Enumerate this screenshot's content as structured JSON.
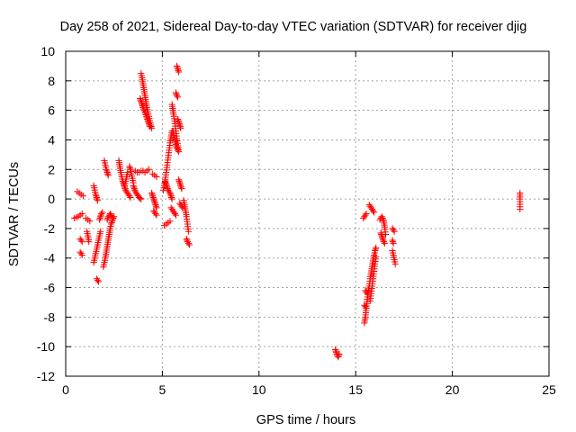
{
  "chart_data": {
    "type": "scatter",
    "title": "Day 258 of 2021, Sidereal Day-to-day VTEC variation (SDTVAR) for receiver djig",
    "xlabel": "GPS time / hours",
    "ylabel": "SDTVAR / TECUs",
    "xlim": [
      0,
      25
    ],
    "ylim": [
      -12,
      10
    ],
    "xticks": [
      0,
      5,
      10,
      15,
      20,
      25
    ],
    "yticks": [
      -12,
      -10,
      -8,
      -6,
      -4,
      -2,
      0,
      2,
      4,
      6,
      8,
      10
    ],
    "grid": true,
    "marker": "+",
    "series": [
      {
        "color": "#ff0000",
        "segments": [
          {
            "x": [
              0.45,
              0.55,
              0.65,
              0.75,
              0.85
            ],
            "y": [
              -1.3,
              -1.25,
              -1.2,
              -1.1,
              -1.0
            ]
          },
          {
            "x": [
              0.6,
              0.7,
              0.8,
              0.9
            ],
            "y": [
              0.5,
              0.4,
              0.3,
              0.2
            ]
          },
          {
            "x": [
              0.75,
              0.8,
              0.85
            ],
            "y": [
              -2.7,
              -2.8,
              -2.9
            ]
          },
          {
            "x": [
              0.75,
              0.8,
              0.85
            ],
            "y": [
              -3.6,
              -3.7,
              -3.8
            ]
          },
          {
            "x": [
              1.05,
              1.15,
              1.25
            ],
            "y": [
              -1.3,
              -1.4,
              -1.5
            ]
          },
          {
            "x": [
              1.1,
              1.15,
              1.2
            ],
            "y": [
              -2.2,
              -2.5,
              -2.9
            ]
          },
          {
            "x": [
              1.45,
              1.5,
              1.55,
              1.6,
              1.65
            ],
            "y": [
              0.9,
              0.6,
              0.3,
              0.1,
              -0.1
            ]
          },
          {
            "x": [
              1.45,
              1.5,
              1.55,
              1.6,
              1.65,
              1.7,
              1.75,
              1.8
            ],
            "y": [
              -4.3,
              -4.0,
              -3.7,
              -3.4,
              -3.1,
              -2.8,
              -2.5,
              -2.2
            ]
          },
          {
            "x": [
              1.6,
              1.65,
              1.7
            ],
            "y": [
              -5.4,
              -5.5,
              -5.6
            ]
          },
          {
            "x": [
              1.75,
              1.8,
              1.85,
              1.9
            ],
            "y": [
              -1.4,
              -1.2,
              -1.0,
              -0.9
            ]
          },
          {
            "x": [
              1.95,
              2.0,
              2.05,
              2.1,
              2.15,
              2.2,
              2.25,
              2.3,
              2.35,
              2.4,
              2.45,
              2.5
            ],
            "y": [
              -4.6,
              -4.3,
              -4.0,
              -3.6,
              -3.2,
              -2.8,
              -2.4,
              -2.0,
              -1.7,
              -1.5,
              -1.3,
              -1.2
            ]
          },
          {
            "x": [
              2.0,
              2.05,
              2.1,
              2.15,
              2.2
            ],
            "y": [
              2.6,
              2.3,
              2.0,
              1.8,
              1.6
            ]
          },
          {
            "x": [
              2.15,
              2.2,
              2.25,
              2.3,
              2.35,
              2.4,
              2.45
            ],
            "y": [
              -1.4,
              -1.2,
              -1.1,
              -1.0,
              -1.1,
              -1.2,
              -1.3
            ]
          },
          {
            "x": [
              2.75,
              2.8,
              2.85,
              2.9,
              2.95,
              3.0,
              3.05,
              3.1,
              3.15,
              3.2,
              3.25,
              3.3,
              3.35
            ],
            "y": [
              2.6,
              2.2,
              1.8,
              1.5,
              1.2,
              1.0,
              0.8,
              0.6,
              0.5,
              0.4,
              0.3,
              0.2,
              0.1
            ]
          },
          {
            "x": [
              3.05,
              3.1,
              3.15,
              3.2
            ],
            "y": [
              0.9,
              1.2,
              1.5,
              1.8
            ]
          },
          {
            "x": [
              3.3,
              3.35,
              3.4,
              3.45,
              3.5
            ],
            "y": [
              2.2,
              2.0,
              1.7,
              1.4,
              1.1
            ]
          },
          {
            "x": [
              3.5,
              3.55,
              3.6,
              3.65,
              3.7,
              3.75,
              3.8,
              3.85,
              3.9
            ],
            "y": [
              0.9,
              0.7,
              0.5,
              0.4,
              0.3,
              0.2,
              0.1,
              0.05,
              0.0
            ]
          },
          {
            "x": [
              3.6,
              3.7,
              3.8,
              3.9,
              4.0,
              4.1,
              4.2,
              4.3
            ],
            "y": [
              1.9,
              1.8,
              1.8,
              1.9,
              1.9,
              1.8,
              1.9,
              2.0
            ]
          },
          {
            "x": [
              3.9,
              3.95,
              4.0,
              4.05,
              4.1,
              4.15,
              4.2,
              4.25,
              4.3,
              4.35,
              4.4,
              4.45
            ],
            "y": [
              8.5,
              8.2,
              7.8,
              7.4,
              7.0,
              6.6,
              6.2,
              5.9,
              5.6,
              5.3,
              5.0,
              4.8
            ]
          },
          {
            "x": [
              3.85,
              3.9,
              3.95,
              4.0,
              4.05
            ],
            "y": [
              6.8,
              6.6,
              6.4,
              6.2,
              6.0
            ]
          },
          {
            "x": [
              4.1,
              4.15,
              4.2,
              4.25,
              4.3,
              4.35
            ],
            "y": [
              5.9,
              5.7,
              5.5,
              5.3,
              5.1,
              4.9
            ]
          },
          {
            "x": [
              4.45,
              4.5,
              4.55,
              4.6,
              4.65,
              4.7
            ],
            "y": [
              0.4,
              0.2,
              0.0,
              -0.2,
              -0.4,
              -0.6
            ]
          },
          {
            "x": [
              4.5,
              4.6,
              4.7
            ],
            "y": [
              1.7,
              1.6,
              1.5
            ]
          },
          {
            "x": [
              4.55,
              4.6,
              4.65,
              4.7
            ],
            "y": [
              -0.8,
              -0.9,
              -1.0,
              -1.1
            ]
          },
          {
            "x": [
              5.05,
              5.1,
              5.15,
              5.2,
              5.25,
              5.3,
              5.35,
              5.4,
              5.45,
              5.5
            ],
            "y": [
              0.6,
              0.9,
              1.3,
              1.8,
              2.3,
              2.8,
              3.3,
              3.8,
              4.2,
              4.6
            ]
          },
          {
            "x": [
              5.1,
              5.2,
              5.3,
              5.4
            ],
            "y": [
              -1.8,
              -1.7,
              -1.6,
              -1.5
            ]
          },
          {
            "x": [
              5.15,
              5.2,
              5.25,
              5.3,
              5.35,
              5.4,
              5.45,
              5.5
            ],
            "y": [
              1.2,
              1.0,
              0.8,
              0.6,
              0.5,
              0.4,
              0.2,
              0.0
            ]
          },
          {
            "x": [
              5.45,
              5.5,
              5.55,
              5.6,
              5.65,
              5.7
            ],
            "y": [
              -0.6,
              -0.7,
              -0.8,
              -0.9,
              -1.0,
              -1.1
            ]
          },
          {
            "x": [
              5.5,
              5.55,
              5.6,
              5.65,
              5.7,
              5.75,
              5.8,
              5.85
            ],
            "y": [
              6.4,
              6.0,
              5.6,
              5.1,
              4.6,
              4.1,
              3.6,
              3.2
            ]
          },
          {
            "x": [
              5.55,
              5.6,
              5.65,
              5.7,
              5.75,
              5.8
            ],
            "y": [
              4.6,
              4.3,
              4.0,
              3.7,
              3.5,
              3.3
            ]
          },
          {
            "x": [
              5.7,
              5.75,
              5.8
            ],
            "y": [
              7.2,
              7.0,
              6.9
            ]
          },
          {
            "x": [
              5.75,
              5.8,
              5.85
            ],
            "y": [
              9.0,
              8.8,
              8.6
            ]
          },
          {
            "x": [
              5.8,
              5.85,
              5.9,
              5.95
            ],
            "y": [
              5.4,
              5.2,
              5.0,
              4.8
            ]
          },
          {
            "x": [
              5.85,
              5.9,
              5.95,
              6.0
            ],
            "y": [
              1.3,
              1.1,
              0.9,
              0.7
            ]
          },
          {
            "x": [
              5.9,
              5.95,
              6.0,
              6.05
            ],
            "y": [
              -0.3,
              -0.4,
              -0.5,
              -0.6
            ]
          },
          {
            "x": [
              6.1,
              6.15,
              6.2,
              6.25,
              6.3,
              6.35
            ],
            "y": [
              -0.1,
              -0.4,
              -0.8,
              -1.2,
              -1.7,
              -2.2
            ]
          },
          {
            "x": [
              6.25,
              6.3,
              6.35,
              6.4
            ],
            "y": [
              -2.7,
              -2.9,
              -3.0,
              -3.1
            ]
          },
          {
            "x": [
              13.95,
              14.0,
              14.05,
              14.1,
              14.15
            ],
            "y": [
              -10.2,
              -10.4,
              -10.6,
              -10.7,
              -10.5
            ]
          },
          {
            "x": [
              15.4,
              15.45,
              15.5,
              15.55
            ],
            "y": [
              -1.3,
              -1.2,
              -1.1,
              -1.0
            ]
          },
          {
            "x": [
              15.45,
              15.5,
              15.55,
              15.6,
              15.65,
              15.7,
              15.75,
              15.8,
              15.85,
              15.9,
              15.95,
              16.0,
              16.05
            ],
            "y": [
              -8.4,
              -8.0,
              -7.4,
              -6.8,
              -6.3,
              -5.9,
              -5.4,
              -5.0,
              -4.6,
              -4.2,
              -3.8,
              -3.5,
              -3.3
            ]
          },
          {
            "x": [
              15.45,
              15.5,
              15.55
            ],
            "y": [
              -7.2,
              -7.3,
              -7.4
            ]
          },
          {
            "x": [
              15.5,
              15.55,
              15.6
            ],
            "y": [
              -6.2,
              -6.3,
              -6.4
            ]
          },
          {
            "x": [
              15.7,
              15.75,
              15.8,
              15.85,
              15.9,
              15.95
            ],
            "y": [
              -0.4,
              -0.5,
              -0.6,
              -0.7,
              -0.8,
              -0.9
            ]
          },
          {
            "x": [
              15.75,
              15.8,
              15.85,
              15.9,
              15.95,
              16.0,
              16.05
            ],
            "y": [
              -6.9,
              -6.4,
              -5.9,
              -5.4,
              -4.9,
              -4.4,
              -3.9
            ]
          },
          {
            "x": [
              16.25,
              16.3,
              16.35,
              16.4,
              16.45,
              16.5,
              16.55
            ],
            "y": [
              -1.4,
              -1.3,
              -1.2,
              -1.3,
              -1.5,
              -1.9,
              -2.4
            ]
          },
          {
            "x": [
              16.3,
              16.35,
              16.4,
              16.45,
              16.5
            ],
            "y": [
              -2.3,
              -2.5,
              -2.7,
              -2.9,
              -3.0
            ]
          },
          {
            "x": [
              16.9,
              16.95,
              17.0
            ],
            "y": [
              -2.0,
              -2.1,
              -2.2
            ]
          },
          {
            "x": [
              16.9,
              16.95,
              17.0,
              17.05
            ],
            "y": [
              -3.5,
              -3.8,
              -4.1,
              -4.4
            ]
          },
          {
            "x": [
              16.9,
              16.95
            ],
            "y": [
              -2.8,
              -3.0
            ]
          },
          {
            "x": [
              23.5,
              23.5,
              23.5
            ],
            "y": [
              0.4,
              0.0,
              -0.7
            ]
          }
        ]
      }
    ]
  }
}
